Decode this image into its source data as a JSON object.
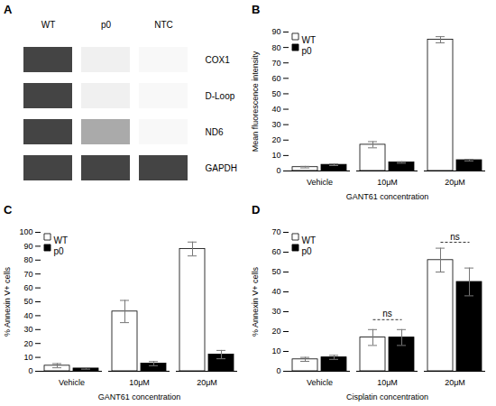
{
  "chart_data": [
    {
      "type": "gel",
      "title": "A",
      "categories": [
        "WT",
        "p0",
        "NTC"
      ],
      "series": [
        {
          "name": "COX1",
          "colors": [
            "#444444",
            "#f0f0f0",
            "#f8f8f8"
          ]
        },
        {
          "name": "D-Loop",
          "colors": [
            "#444444",
            "#f0f0f0",
            "#f8f8f8"
          ]
        },
        {
          "name": "ND6",
          "colors": [
            "#444444",
            "#aaaaaa",
            "#f8f8f8"
          ]
        },
        {
          "name": "GAPDH",
          "colors": [
            "#444444",
            "#444444",
            "#444444"
          ]
        }
      ]
    },
    {
      "type": "bar",
      "title": "B",
      "categories": [
        "Vehicle",
        "10μM",
        "20μM"
      ],
      "series": [
        {
          "name": "WT",
          "color": "white",
          "values": [
            2.5,
            17,
            85
          ],
          "errors": [
            0.5,
            2,
            2
          ]
        },
        {
          "name": "p0",
          "color": "black",
          "values": [
            4,
            5.5,
            7
          ],
          "errors": [
            0.5,
            0.5,
            0.5
          ]
        }
      ],
      "xlabel": "GANT61 concentration",
      "ylabel": "Mean fluorescence intensity",
      "ylim": [
        0,
        90
      ],
      "yticks": [
        0,
        10,
        20,
        30,
        40,
        50,
        60,
        70,
        80,
        90
      ],
      "legend": "upper left",
      "grid": false
    },
    {
      "type": "bar",
      "title": "C",
      "categories": [
        "Vehicle",
        "10μM",
        "20μM"
      ],
      "series": [
        {
          "name": "WT",
          "color": "white",
          "values": [
            4,
            43,
            88
          ],
          "errors": [
            1.5,
            8,
            5
          ]
        },
        {
          "name": "p0",
          "color": "black",
          "values": [
            2,
            5.5,
            12
          ],
          "errors": [
            0.5,
            1.5,
            3
          ]
        }
      ],
      "xlabel": "GANT61 concentration",
      "ylabel": "% Annexin V+ cells",
      "ylim": [
        0,
        100
      ],
      "yticks": [
        0,
        10,
        20,
        30,
        40,
        50,
        60,
        70,
        80,
        90,
        100
      ],
      "legend": "upper left",
      "grid": false
    },
    {
      "type": "bar",
      "title": "D",
      "categories": [
        "Vehicle",
        "10μM",
        "20μM"
      ],
      "series": [
        {
          "name": "WT",
          "color": "white",
          "values": [
            6,
            17,
            56
          ],
          "errors": [
            1,
            4,
            6
          ]
        },
        {
          "name": "p0",
          "color": "black",
          "values": [
            7,
            17,
            45
          ],
          "errors": [
            1,
            4,
            7
          ]
        }
      ],
      "xlabel": "Cisplatin concentration",
      "ylabel": "% Annexin V+ cells",
      "ylim": [
        0,
        70
      ],
      "yticks": [
        0,
        10,
        20,
        30,
        40,
        50,
        60,
        70
      ],
      "legend": "upper left",
      "grid": false,
      "annotations": [
        {
          "category": "10μM",
          "y": 26,
          "label": "ns"
        },
        {
          "category": "20μM",
          "y": 65,
          "label": "ns"
        }
      ]
    }
  ]
}
